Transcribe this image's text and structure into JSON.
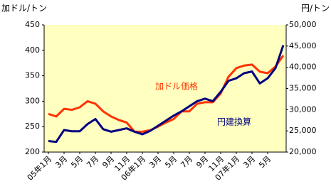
{
  "chart_data": {
    "type": "line",
    "categories": [
      "05年1月",
      null,
      "3月",
      null,
      "5月",
      null,
      "7月",
      null,
      "9月",
      null,
      "11月",
      null,
      "06年1月",
      null,
      "3月",
      null,
      "5月",
      null,
      "7月",
      null,
      "9月",
      null,
      "11月",
      null,
      "07年1月",
      null,
      "3月",
      null,
      "5月",
      null,
      null
    ],
    "ylabel": "加ドル/トン",
    "y2label": "円/トン",
    "ylim": [
      200,
      450
    ],
    "yticks": [
      200,
      250,
      300,
      350,
      400,
      450
    ],
    "y2lim": [
      20000,
      50000
    ],
    "y2ticks": [
      {
        "value": 20000,
        "label": "20,000"
      },
      {
        "value": 25000,
        "label": "25,000"
      },
      {
        "value": 30000,
        "label": "30,000"
      },
      {
        "value": 35000,
        "label": "35,000"
      },
      {
        "value": 40000,
        "label": "40,000"
      },
      {
        "value": 45000,
        "label": "45,000"
      },
      {
        "value": 50000,
        "label": "50,000"
      }
    ],
    "series": [
      {
        "name": "加ドル価格",
        "color": "#ff3300",
        "values": [
          275,
          270,
          285,
          283,
          288,
          300,
          295,
          280,
          270,
          263,
          258,
          240,
          240,
          243,
          250,
          258,
          265,
          280,
          280,
          295,
          298,
          298,
          315,
          348,
          365,
          370,
          372,
          358,
          355,
          368,
          390
        ]
      },
      {
        "name": "円建換算",
        "color": "#000080",
        "axis": "y2",
        "values": [
          22600,
          22400,
          25200,
          24900,
          24900,
          26600,
          27800,
          25400,
          24800,
          25200,
          25600,
          24800,
          24200,
          25000,
          26200,
          27400,
          28600,
          29600,
          30800,
          32000,
          32600,
          32000,
          34200,
          36800,
          37400,
          38600,
          39000,
          36200,
          37400,
          39800,
          45200
        ]
      }
    ]
  }
}
